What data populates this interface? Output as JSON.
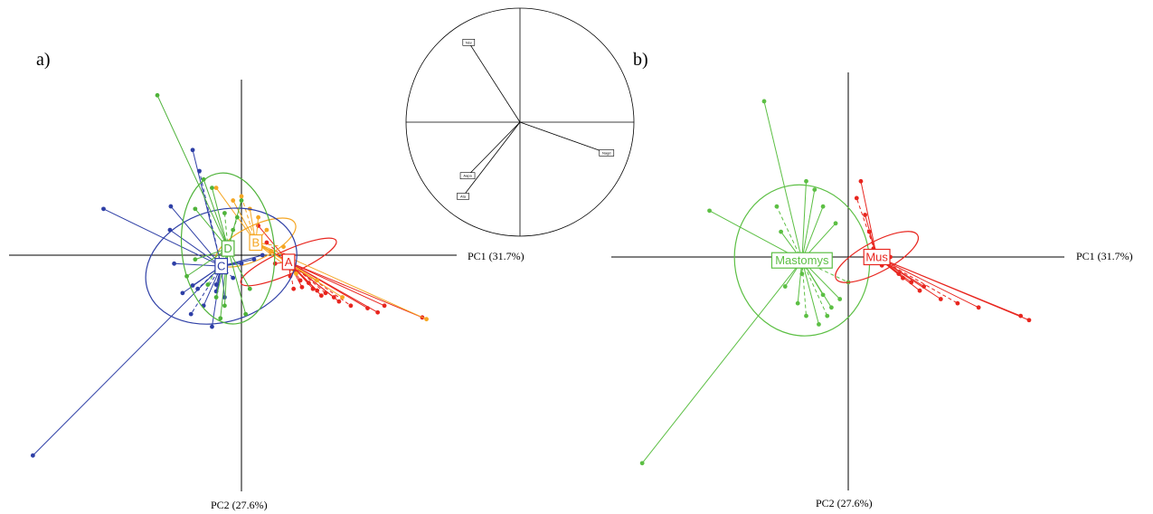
{
  "figure": {
    "panel_a_label": "a)",
    "panel_b_label": "b)"
  },
  "chart_data": [
    {
      "panel": "a)",
      "type": "scatter",
      "xlabel": "PC1 (31.7%)",
      "ylabel": "PC2 (27.6%)",
      "xlim": [
        -2.6,
        2.4
      ],
      "ylim": [
        -2.6,
        1.9
      ],
      "groups": [
        {
          "name": "A",
          "color": "#e8261f",
          "center": [
            0.56,
            -0.08
          ],
          "ellipse": {
            "rx": 0.62,
            "ry": 0.14,
            "angle": -24
          },
          "points": [
            [
              0.58,
              -0.25
            ],
            [
              0.9,
              -0.42
            ],
            [
              1.16,
              -0.55
            ],
            [
              1.3,
              -0.6
            ],
            [
              1.5,
              -0.63
            ],
            [
              1.62,
              -0.68
            ],
            [
              1.7,
              -0.6
            ],
            [
              2.15,
              -0.74
            ],
            [
              1.0,
              -0.45
            ],
            [
              0.8,
              -0.33
            ],
            [
              0.7,
              -0.3
            ],
            [
              0.95,
              -0.48
            ],
            [
              1.1,
              -0.5
            ],
            [
              0.62,
              -0.4
            ],
            [
              0.65,
              -0.2
            ],
            [
              0.4,
              -0.1
            ],
            [
              0.5,
              0.0
            ],
            [
              0.35,
              0.05
            ],
            [
              0.3,
              0.15
            ],
            [
              0.2,
              0.35
            ],
            [
              0.72,
              -0.38
            ],
            [
              0.85,
              -0.4
            ]
          ]
        },
        {
          "name": "B",
          "color": "#f5a623",
          "center": [
            0.17,
            0.15
          ],
          "ellipse": {
            "rx": 0.52,
            "ry": 0.2,
            "angle": -26
          },
          "points": [
            [
              2.2,
              -0.76
            ],
            [
              1.2,
              -0.5
            ],
            [
              0.1,
              0.55
            ],
            [
              0.0,
              0.7
            ],
            [
              -0.1,
              0.65
            ],
            [
              0.2,
              0.45
            ],
            [
              0.3,
              0.3
            ],
            [
              -0.3,
              0.8
            ],
            [
              0.5,
              0.1
            ],
            [
              0.65,
              -0.22
            ],
            [
              0.9,
              -0.3
            ],
            [
              0.35,
              0.05
            ]
          ]
        },
        {
          "name": "C",
          "color": "#2e3fa6",
          "center": [
            -0.24,
            -0.13
          ],
          "ellipse": {
            "rx": 0.92,
            "ry": 0.66,
            "angle": -18
          },
          "points": [
            [
              -2.48,
              -2.38
            ],
            [
              -1.64,
              0.55
            ],
            [
              -0.58,
              1.25
            ],
            [
              -0.5,
              1.0
            ],
            [
              -0.84,
              0.58
            ],
            [
              -0.85,
              0.3
            ],
            [
              -0.8,
              -0.1
            ],
            [
              -0.7,
              -0.45
            ],
            [
              -0.6,
              -0.7
            ],
            [
              -0.58,
              -0.36
            ],
            [
              -0.35,
              -0.85
            ],
            [
              -0.3,
              -0.43
            ],
            [
              -0.2,
              -0.5
            ],
            [
              -0.1,
              -0.27
            ],
            [
              0.0,
              -0.1
            ],
            [
              0.15,
              -0.05
            ],
            [
              0.25,
              0.0
            ],
            [
              -0.45,
              -0.6
            ],
            [
              -0.52,
              -0.4
            ],
            [
              -0.3,
              -0.35
            ]
          ]
        },
        {
          "name": "D",
          "color": "#4fb33a",
          "center": [
            -0.16,
            0.08
          ],
          "ellipse": {
            "rx": 0.55,
            "ry": 0.9,
            "angle": -6
          },
          "points": [
            [
              -1.0,
              1.9
            ],
            [
              -0.45,
              0.9
            ],
            [
              -0.35,
              0.8
            ],
            [
              -0.2,
              0.5
            ],
            [
              -0.1,
              0.3
            ],
            [
              -0.55,
              0.55
            ],
            [
              -0.55,
              -0.05
            ],
            [
              -0.65,
              -0.25
            ],
            [
              -0.4,
              -0.35
            ],
            [
              -0.3,
              -0.5
            ],
            [
              -0.2,
              -0.6
            ],
            [
              0.05,
              -0.7
            ],
            [
              0.1,
              -0.4
            ],
            [
              -0.05,
              0.45
            ],
            [
              0.0,
              0.65
            ],
            [
              -0.25,
              -0.75
            ]
          ]
        }
      ]
    },
    {
      "panel": "b)",
      "type": "scatter",
      "xlabel": "PC1 (31.7%)",
      "ylabel": "PC2 (27.6%)",
      "xlim": [
        -2.6,
        2.4
      ],
      "ylim": [
        -2.6,
        1.9
      ],
      "groups": [
        {
          "name": "Mastomys",
          "color": "#5cbf44",
          "center": [
            -0.55,
            -0.04
          ],
          "ellipse": {
            "rx": 0.8,
            "ry": 0.9,
            "angle": -10
          },
          "points": [
            [
              -2.45,
              -2.45
            ],
            [
              -1.65,
              0.55
            ],
            [
              -1.0,
              1.85
            ],
            [
              -0.85,
              0.6
            ],
            [
              -0.8,
              0.3
            ],
            [
              -0.75,
              -0.35
            ],
            [
              -0.6,
              -0.55
            ],
            [
              -0.55,
              -0.2
            ],
            [
              -0.5,
              -0.7
            ],
            [
              -0.35,
              -0.8
            ],
            [
              -0.3,
              -0.45
            ],
            [
              -0.2,
              -0.6
            ],
            [
              -0.1,
              -0.5
            ],
            [
              0.0,
              -0.3
            ],
            [
              -0.4,
              0.8
            ],
            [
              -0.3,
              0.6
            ],
            [
              -0.15,
              0.4
            ],
            [
              -0.5,
              0.9
            ],
            [
              -0.25,
              -0.7
            ]
          ]
        },
        {
          "name": "Mus",
          "color": "#e8261f",
          "center": [
            0.34,
            0.0
          ],
          "ellipse": {
            "rx": 0.55,
            "ry": 0.18,
            "angle": -28
          },
          "points": [
            [
              2.15,
              -0.75
            ],
            [
              2.05,
              -0.7
            ],
            [
              1.55,
              -0.6
            ],
            [
              1.3,
              -0.55
            ],
            [
              1.1,
              -0.5
            ],
            [
              0.9,
              -0.35
            ],
            [
              0.75,
              -0.3
            ],
            [
              0.6,
              -0.2
            ],
            [
              0.4,
              -0.1
            ],
            [
              0.3,
              0.1
            ],
            [
              0.25,
              0.3
            ],
            [
              0.2,
              0.5
            ],
            [
              0.15,
              0.9
            ],
            [
              0.1,
              0.7
            ],
            [
              0.5,
              0.0
            ],
            [
              0.65,
              -0.25
            ],
            [
              0.85,
              -0.4
            ]
          ]
        }
      ]
    },
    {
      "panel": "correlation-circle",
      "type": "scatter",
      "vectors": [
        {
          "name": "Nsv",
          "x": -0.45,
          "y": 0.7
        },
        {
          "name": "Nagd",
          "x": 0.76,
          "y": -0.27
        },
        {
          "name": "Aapa",
          "x": -0.46,
          "y": -0.47
        },
        {
          "name": "Ata",
          "x": -0.5,
          "y": -0.65
        }
      ]
    }
  ]
}
